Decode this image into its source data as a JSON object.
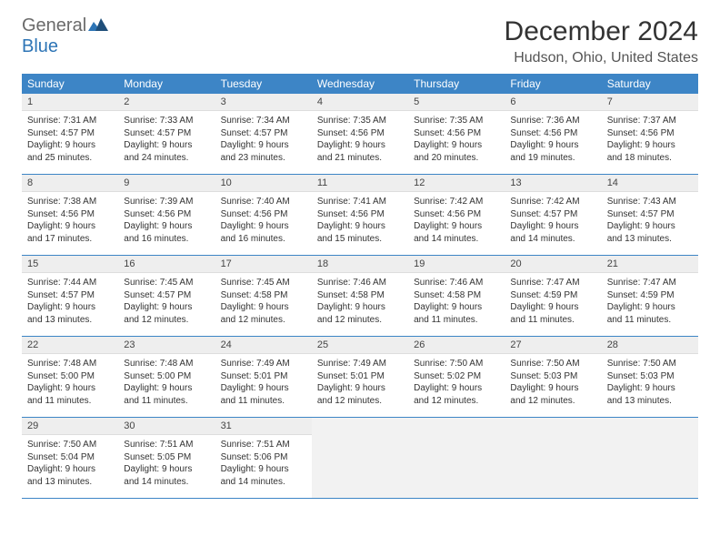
{
  "brand": {
    "w1": "General",
    "w2": "Blue"
  },
  "title": "December 2024",
  "location": "Hudson, Ohio, United States",
  "weekdays": [
    "Sunday",
    "Monday",
    "Tuesday",
    "Wednesday",
    "Thursday",
    "Friday",
    "Saturday"
  ],
  "colors": {
    "header_bg": "#3d85c6",
    "header_fg": "#ffffff",
    "daynum_bg": "#eeeeee",
    "border": "#3d85c6",
    "brand_gray": "#6a6a6a",
    "brand_blue": "#2e75b6"
  },
  "weeks": [
    [
      {
        "n": "1",
        "sr": "Sunrise: 7:31 AM",
        "ss": "Sunset: 4:57 PM",
        "d1": "Daylight: 9 hours",
        "d2": "and 25 minutes."
      },
      {
        "n": "2",
        "sr": "Sunrise: 7:33 AM",
        "ss": "Sunset: 4:57 PM",
        "d1": "Daylight: 9 hours",
        "d2": "and 24 minutes."
      },
      {
        "n": "3",
        "sr": "Sunrise: 7:34 AM",
        "ss": "Sunset: 4:57 PM",
        "d1": "Daylight: 9 hours",
        "d2": "and 23 minutes."
      },
      {
        "n": "4",
        "sr": "Sunrise: 7:35 AM",
        "ss": "Sunset: 4:56 PM",
        "d1": "Daylight: 9 hours",
        "d2": "and 21 minutes."
      },
      {
        "n": "5",
        "sr": "Sunrise: 7:35 AM",
        "ss": "Sunset: 4:56 PM",
        "d1": "Daylight: 9 hours",
        "d2": "and 20 minutes."
      },
      {
        "n": "6",
        "sr": "Sunrise: 7:36 AM",
        "ss": "Sunset: 4:56 PM",
        "d1": "Daylight: 9 hours",
        "d2": "and 19 minutes."
      },
      {
        "n": "7",
        "sr": "Sunrise: 7:37 AM",
        "ss": "Sunset: 4:56 PM",
        "d1": "Daylight: 9 hours",
        "d2": "and 18 minutes."
      }
    ],
    [
      {
        "n": "8",
        "sr": "Sunrise: 7:38 AM",
        "ss": "Sunset: 4:56 PM",
        "d1": "Daylight: 9 hours",
        "d2": "and 17 minutes."
      },
      {
        "n": "9",
        "sr": "Sunrise: 7:39 AM",
        "ss": "Sunset: 4:56 PM",
        "d1": "Daylight: 9 hours",
        "d2": "and 16 minutes."
      },
      {
        "n": "10",
        "sr": "Sunrise: 7:40 AM",
        "ss": "Sunset: 4:56 PM",
        "d1": "Daylight: 9 hours",
        "d2": "and 16 minutes."
      },
      {
        "n": "11",
        "sr": "Sunrise: 7:41 AM",
        "ss": "Sunset: 4:56 PM",
        "d1": "Daylight: 9 hours",
        "d2": "and 15 minutes."
      },
      {
        "n": "12",
        "sr": "Sunrise: 7:42 AM",
        "ss": "Sunset: 4:56 PM",
        "d1": "Daylight: 9 hours",
        "d2": "and 14 minutes."
      },
      {
        "n": "13",
        "sr": "Sunrise: 7:42 AM",
        "ss": "Sunset: 4:57 PM",
        "d1": "Daylight: 9 hours",
        "d2": "and 14 minutes."
      },
      {
        "n": "14",
        "sr": "Sunrise: 7:43 AM",
        "ss": "Sunset: 4:57 PM",
        "d1": "Daylight: 9 hours",
        "d2": "and 13 minutes."
      }
    ],
    [
      {
        "n": "15",
        "sr": "Sunrise: 7:44 AM",
        "ss": "Sunset: 4:57 PM",
        "d1": "Daylight: 9 hours",
        "d2": "and 13 minutes."
      },
      {
        "n": "16",
        "sr": "Sunrise: 7:45 AM",
        "ss": "Sunset: 4:57 PM",
        "d1": "Daylight: 9 hours",
        "d2": "and 12 minutes."
      },
      {
        "n": "17",
        "sr": "Sunrise: 7:45 AM",
        "ss": "Sunset: 4:58 PM",
        "d1": "Daylight: 9 hours",
        "d2": "and 12 minutes."
      },
      {
        "n": "18",
        "sr": "Sunrise: 7:46 AM",
        "ss": "Sunset: 4:58 PM",
        "d1": "Daylight: 9 hours",
        "d2": "and 12 minutes."
      },
      {
        "n": "19",
        "sr": "Sunrise: 7:46 AM",
        "ss": "Sunset: 4:58 PM",
        "d1": "Daylight: 9 hours",
        "d2": "and 11 minutes."
      },
      {
        "n": "20",
        "sr": "Sunrise: 7:47 AM",
        "ss": "Sunset: 4:59 PM",
        "d1": "Daylight: 9 hours",
        "d2": "and 11 minutes."
      },
      {
        "n": "21",
        "sr": "Sunrise: 7:47 AM",
        "ss": "Sunset: 4:59 PM",
        "d1": "Daylight: 9 hours",
        "d2": "and 11 minutes."
      }
    ],
    [
      {
        "n": "22",
        "sr": "Sunrise: 7:48 AM",
        "ss": "Sunset: 5:00 PM",
        "d1": "Daylight: 9 hours",
        "d2": "and 11 minutes."
      },
      {
        "n": "23",
        "sr": "Sunrise: 7:48 AM",
        "ss": "Sunset: 5:00 PM",
        "d1": "Daylight: 9 hours",
        "d2": "and 11 minutes."
      },
      {
        "n": "24",
        "sr": "Sunrise: 7:49 AM",
        "ss": "Sunset: 5:01 PM",
        "d1": "Daylight: 9 hours",
        "d2": "and 11 minutes."
      },
      {
        "n": "25",
        "sr": "Sunrise: 7:49 AM",
        "ss": "Sunset: 5:01 PM",
        "d1": "Daylight: 9 hours",
        "d2": "and 12 minutes."
      },
      {
        "n": "26",
        "sr": "Sunrise: 7:50 AM",
        "ss": "Sunset: 5:02 PM",
        "d1": "Daylight: 9 hours",
        "d2": "and 12 minutes."
      },
      {
        "n": "27",
        "sr": "Sunrise: 7:50 AM",
        "ss": "Sunset: 5:03 PM",
        "d1": "Daylight: 9 hours",
        "d2": "and 12 minutes."
      },
      {
        "n": "28",
        "sr": "Sunrise: 7:50 AM",
        "ss": "Sunset: 5:03 PM",
        "d1": "Daylight: 9 hours",
        "d2": "and 13 minutes."
      }
    ],
    [
      {
        "n": "29",
        "sr": "Sunrise: 7:50 AM",
        "ss": "Sunset: 5:04 PM",
        "d1": "Daylight: 9 hours",
        "d2": "and 13 minutes."
      },
      {
        "n": "30",
        "sr": "Sunrise: 7:51 AM",
        "ss": "Sunset: 5:05 PM",
        "d1": "Daylight: 9 hours",
        "d2": "and 14 minutes."
      },
      {
        "n": "31",
        "sr": "Sunrise: 7:51 AM",
        "ss": "Sunset: 5:06 PM",
        "d1": "Daylight: 9 hours",
        "d2": "and 14 minutes."
      },
      null,
      null,
      null,
      null
    ]
  ]
}
